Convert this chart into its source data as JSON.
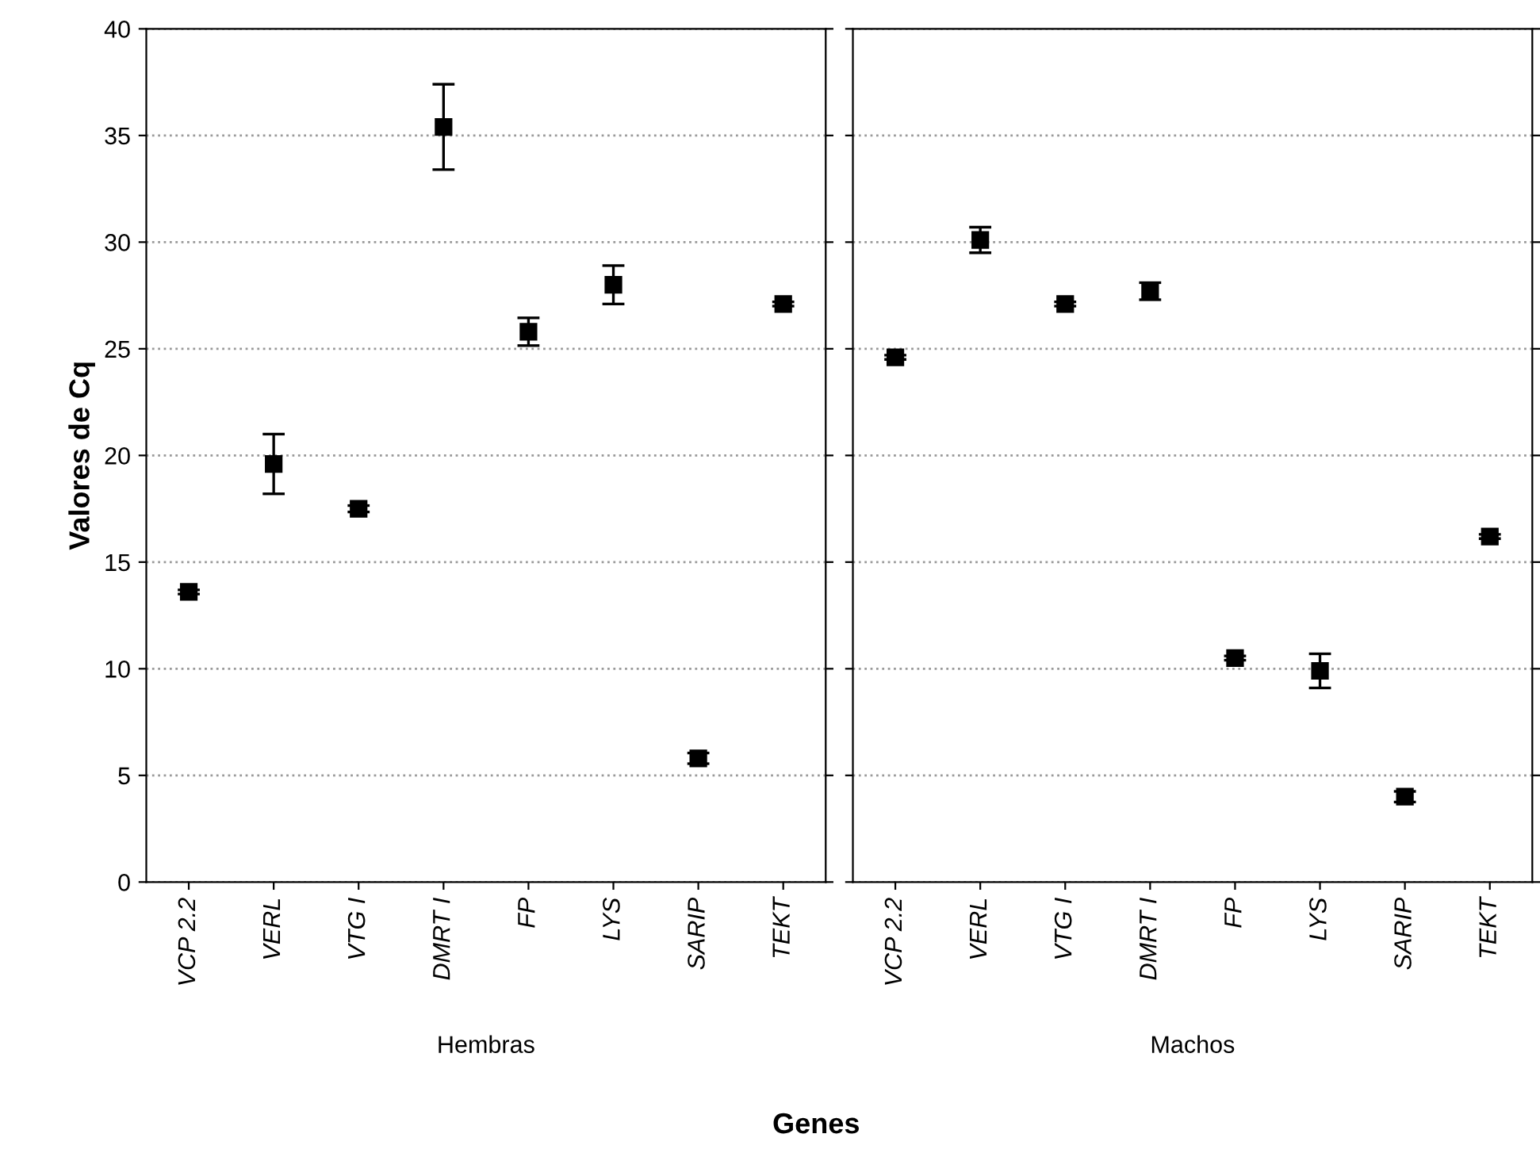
{
  "chart_data": [
    {
      "type": "scatter",
      "xlabel": "Hembras",
      "ylabel": "Valores de Cq",
      "annotations": [
        "Genes"
      ],
      "categories": [
        "VCP 2.2",
        "VERL",
        "VTG I",
        "DMRT I",
        "FP",
        "LYS",
        "SARIP",
        "TEKT"
      ],
      "series": [
        {
          "color": "#000000",
          "values": [
            13.6,
            19.6,
            17.5,
            35.4,
            25.8,
            28.0,
            5.8,
            27.1
          ],
          "errors": [
            0.1,
            1.4,
            0.15,
            2.0,
            0.65,
            0.9,
            0.25,
            0.1
          ]
        }
      ],
      "ylim": [
        0,
        40
      ],
      "yticks": [
        0,
        5,
        10,
        15,
        20,
        25,
        30,
        35,
        40
      ],
      "grid": "y",
      "marker": "square",
      "legend": false
    },
    {
      "type": "scatter",
      "xlabel": "Machos",
      "categories": [
        "VCP 2.2",
        "VERL",
        "VTG I",
        "DMRT I",
        "FP",
        "LYS",
        "SARIP",
        "TEKT"
      ],
      "series": [
        {
          "color": "#000000",
          "values": [
            24.6,
            30.1,
            27.1,
            27.7,
            10.5,
            9.9,
            4.0,
            16.2
          ],
          "errors": [
            0.1,
            0.6,
            0.1,
            0.4,
            0.1,
            0.8,
            0.25,
            0.1
          ]
        }
      ],
      "ylim": [
        0,
        40
      ],
      "yticks": [
        0,
        5,
        10,
        15,
        20,
        25,
        30,
        35,
        40
      ],
      "grid": "y",
      "marker": "square",
      "legend": false,
      "tick_labels": "x"
    }
  ]
}
